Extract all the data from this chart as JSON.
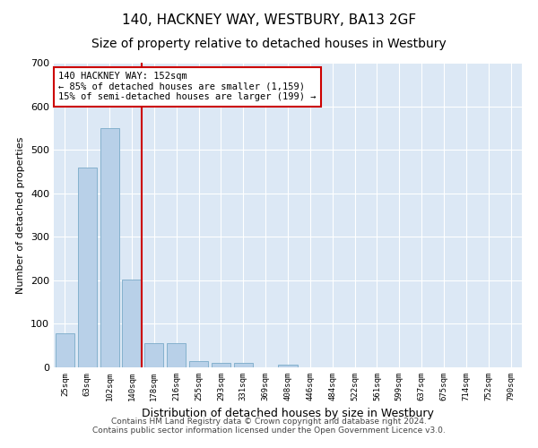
{
  "title": "140, HACKNEY WAY, WESTBURY, BA13 2GF",
  "subtitle": "Size of property relative to detached houses in Westbury",
  "xlabel": "Distribution of detached houses by size in Westbury",
  "ylabel": "Number of detached properties",
  "categories": [
    "25sqm",
    "63sqm",
    "102sqm",
    "140sqm",
    "178sqm",
    "216sqm",
    "255sqm",
    "293sqm",
    "331sqm",
    "369sqm",
    "408sqm",
    "446sqm",
    "484sqm",
    "522sqm",
    "561sqm",
    "599sqm",
    "637sqm",
    "675sqm",
    "714sqm",
    "752sqm",
    "790sqm"
  ],
  "values": [
    78,
    460,
    550,
    202,
    55,
    55,
    15,
    10,
    10,
    0,
    7,
    0,
    0,
    0,
    0,
    0,
    0,
    0,
    0,
    0,
    0
  ],
  "bar_color": "#b8d0e8",
  "bar_edge_color": "#7aaac8",
  "highlight_line_index": 3,
  "highlight_color": "#cc0000",
  "ylim": [
    0,
    700
  ],
  "yticks": [
    0,
    100,
    200,
    300,
    400,
    500,
    600,
    700
  ],
  "annotation_title": "140 HACKNEY WAY: 152sqm",
  "annotation_line1": "← 85% of detached houses are smaller (1,159)",
  "annotation_line2": "15% of semi-detached houses are larger (199) →",
  "annotation_box_color": "#ffffff",
  "annotation_border_color": "#cc0000",
  "plot_bg_color": "#dce8f5",
  "footer_line1": "Contains HM Land Registry data © Crown copyright and database right 2024.",
  "footer_line2": "Contains public sector information licensed under the Open Government Licence v3.0.",
  "title_fontsize": 11,
  "subtitle_fontsize": 10,
  "xlabel_fontsize": 9,
  "ylabel_fontsize": 8,
  "footer_fontsize": 6.5
}
